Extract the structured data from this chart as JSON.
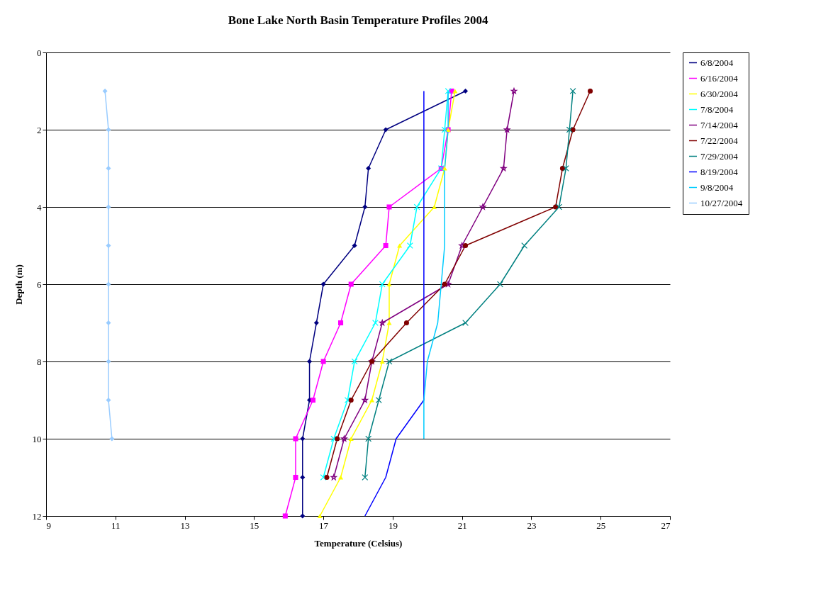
{
  "chart_data": {
    "type": "line",
    "title": "Bone Lake North Basin Temperature Profiles 2004",
    "xlabel": "Temperature (Celsius)",
    "ylabel": "Depth (m)",
    "xlim": [
      9,
      27
    ],
    "xticks": [
      9,
      11,
      13,
      15,
      17,
      19,
      21,
      23,
      25,
      27
    ],
    "ylim": [
      12,
      0
    ],
    "yticks": [
      0,
      2,
      4,
      6,
      8,
      10,
      12
    ],
    "grid": "y",
    "legend": "right",
    "series": [
      {
        "name": "6/8/2004",
        "color": "#000080",
        "marker": "diamond",
        "x": [
          21.1,
          18.8,
          18.3,
          18.2,
          17.9,
          17.0,
          16.8,
          16.6,
          16.6,
          16.4,
          16.4,
          16.4
        ],
        "values": [
          1,
          2,
          3,
          4,
          5,
          6,
          7,
          8,
          9,
          10,
          11,
          12
        ]
      },
      {
        "name": "6/16/2004",
        "color": "#ff00ff",
        "marker": "square",
        "x": [
          20.7,
          20.6,
          20.4,
          18.9,
          18.8,
          17.8,
          17.5,
          17.0,
          16.7,
          16.2,
          16.2,
          15.9
        ],
        "values": [
          1,
          2,
          3,
          4,
          5,
          6,
          7,
          8,
          9,
          10,
          11,
          12
        ]
      },
      {
        "name": "6/30/2004",
        "color": "#ffff00",
        "marker": "triangle",
        "x": [
          20.8,
          20.6,
          20.5,
          20.2,
          19.2,
          18.9,
          18.9,
          18.7,
          18.4,
          17.8,
          17.5,
          16.9
        ],
        "values": [
          1,
          2,
          3,
          4,
          5,
          6,
          7,
          8,
          9,
          10,
          11,
          12
        ]
      },
      {
        "name": "7/8/2004",
        "color": "#00ffff",
        "marker": "cross",
        "x": [
          20.6,
          20.5,
          20.4,
          19.7,
          19.5,
          18.7,
          18.5,
          17.9,
          17.7,
          17.3,
          17.0
        ],
        "values": [
          1,
          2,
          3,
          4,
          5,
          6,
          7,
          8,
          9,
          10,
          11
        ]
      },
      {
        "name": "7/14/2004",
        "color": "#800080",
        "marker": "star",
        "x": [
          22.5,
          22.3,
          22.2,
          21.6,
          21.0,
          20.6,
          18.7,
          18.4,
          18.2,
          17.6,
          17.3
        ],
        "values": [
          1,
          2,
          3,
          4,
          5,
          6,
          7,
          8,
          9,
          10,
          11
        ]
      },
      {
        "name": "7/22/2004",
        "color": "#800000",
        "marker": "circle",
        "x": [
          24.7,
          24.2,
          23.9,
          23.7,
          21.1,
          20.5,
          19.4,
          18.4,
          17.8,
          17.4,
          17.1
        ],
        "values": [
          1,
          2,
          3,
          4,
          5,
          6,
          7,
          8,
          9,
          10,
          11
        ]
      },
      {
        "name": "7/29/2004",
        "color": "#008080",
        "marker": "cross",
        "x": [
          24.2,
          24.1,
          24.0,
          23.8,
          22.8,
          22.1,
          21.1,
          18.9,
          18.6,
          18.3,
          18.2
        ],
        "values": [
          1,
          2,
          3,
          4,
          5,
          6,
          7,
          8,
          9,
          10,
          11
        ]
      },
      {
        "name": "8/19/2004",
        "color": "#0000ff",
        "marker": "none",
        "x": [
          19.9,
          19.9,
          19.9,
          19.9,
          19.9,
          19.9,
          19.9,
          19.9,
          19.9,
          19.1,
          18.8,
          18.2
        ],
        "values": [
          1,
          2,
          3,
          4,
          5,
          6,
          7,
          8,
          9,
          10,
          11,
          12
        ]
      },
      {
        "name": "9/8/2004",
        "color": "#00ccff",
        "marker": "none",
        "x": [
          20.6,
          20.6,
          20.5,
          20.5,
          20.5,
          20.4,
          20.3,
          20.0,
          19.9,
          19.9
        ],
        "values": [
          1,
          2,
          3,
          4,
          5,
          6,
          7,
          8,
          9,
          10
        ]
      },
      {
        "name": "10/27/2004",
        "color": "#99ccff",
        "marker": "diamond",
        "x": [
          10.7,
          10.8,
          10.8,
          10.8,
          10.8,
          10.8,
          10.8,
          10.8,
          10.8,
          10.9
        ],
        "values": [
          1,
          2,
          3,
          4,
          5,
          6,
          7,
          8,
          9,
          10
        ]
      }
    ]
  }
}
